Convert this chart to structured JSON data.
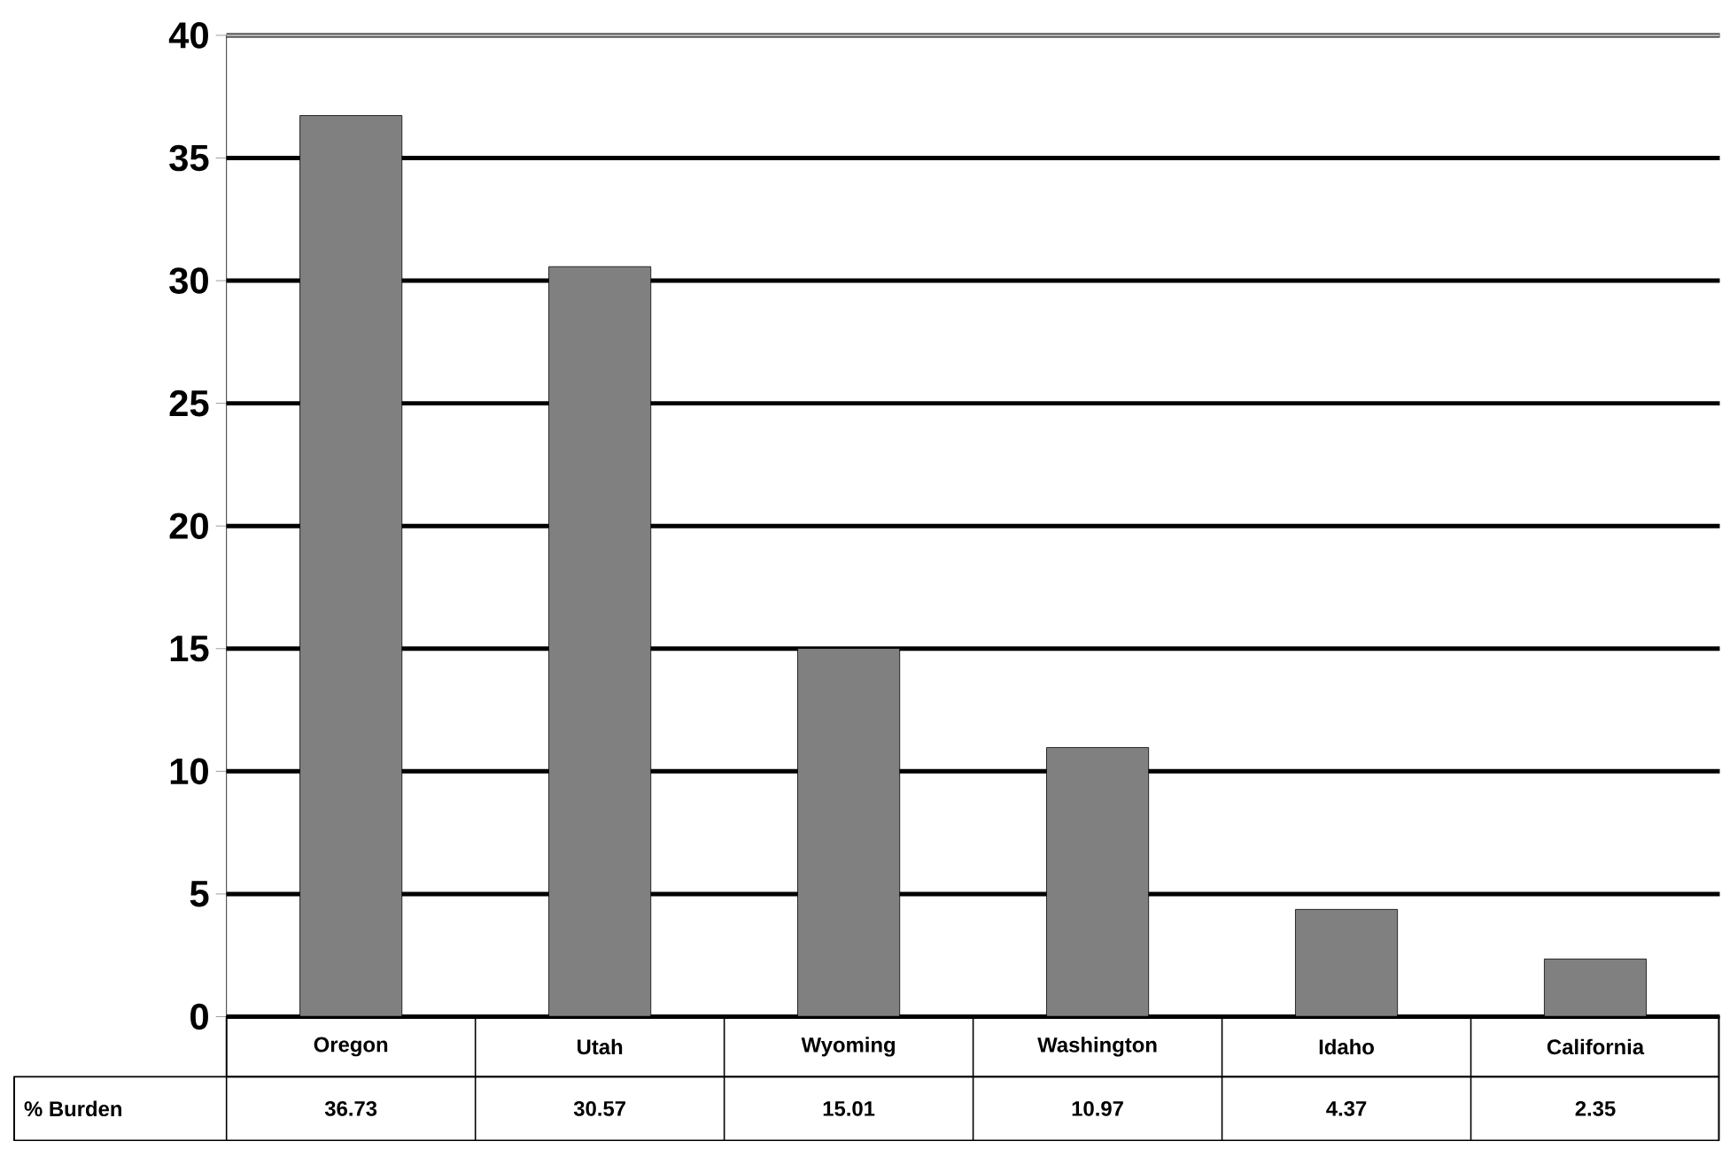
{
  "chart_data": {
    "type": "bar",
    "categories": [
      "Oregon",
      "Utah",
      "Wyoming",
      "Washington",
      "Idaho",
      "California"
    ],
    "series": [
      {
        "name": "% Burden",
        "color": "#808080",
        "values": [
          36.73,
          30.57,
          15.01,
          10.97,
          4.37,
          2.35
        ]
      }
    ],
    "ylim": [
      0,
      40
    ],
    "yticks": [
      0,
      5,
      10,
      15,
      20,
      25,
      30,
      35,
      40
    ],
    "grid": "y",
    "data_labels": true
  }
}
